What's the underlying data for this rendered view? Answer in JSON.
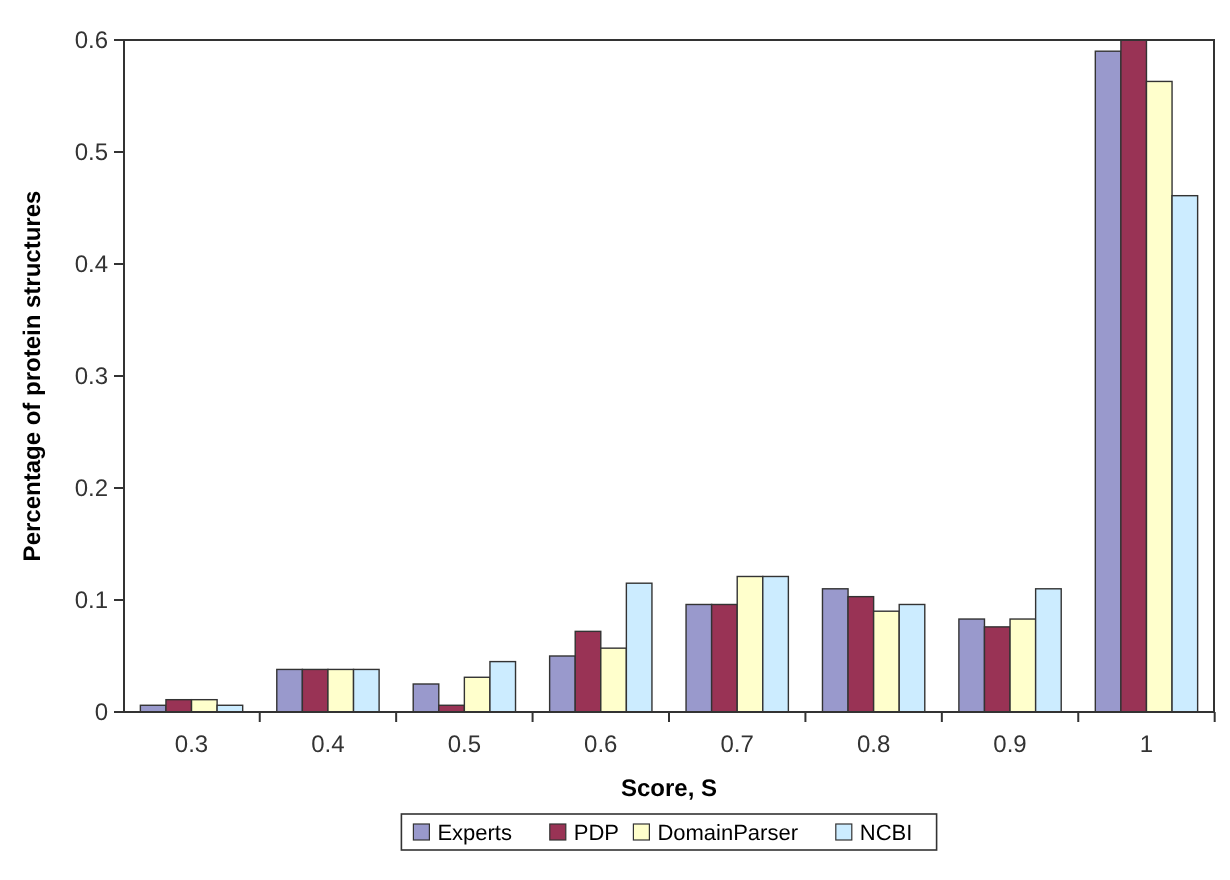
{
  "chart_data": {
    "type": "bar",
    "xlabel": "Score, S",
    "ylabel": "Percentage of protein structures",
    "categories": [
      "0.3",
      "0.4",
      "0.5",
      "0.6",
      "0.7",
      "0.8",
      "0.9",
      "1"
    ],
    "series": [
      {
        "name": "Experts",
        "color": "#9999cc",
        "values": [
          0.006,
          0.038,
          0.025,
          0.05,
          0.096,
          0.11,
          0.083,
          0.59
        ]
      },
      {
        "name": "PDP",
        "color": "#993355",
        "values": [
          0.011,
          0.038,
          0.006,
          0.072,
          0.096,
          0.103,
          0.076,
          0.6
        ]
      },
      {
        "name": "DomainParser",
        "color": "#ffffcc",
        "values": [
          0.011,
          0.038,
          0.031,
          0.057,
          0.121,
          0.09,
          0.083,
          0.563
        ]
      },
      {
        "name": "NCBI",
        "color": "#ccecff",
        "values": [
          0.006,
          0.038,
          0.045,
          0.115,
          0.121,
          0.096,
          0.11,
          0.461
        ]
      }
    ],
    "ylim": [
      0,
      0.6
    ],
    "yticks": [
      0,
      0.1,
      0.2,
      0.3,
      0.4,
      0.5,
      0.6
    ],
    "grid": false,
    "legend": "bottom"
  }
}
